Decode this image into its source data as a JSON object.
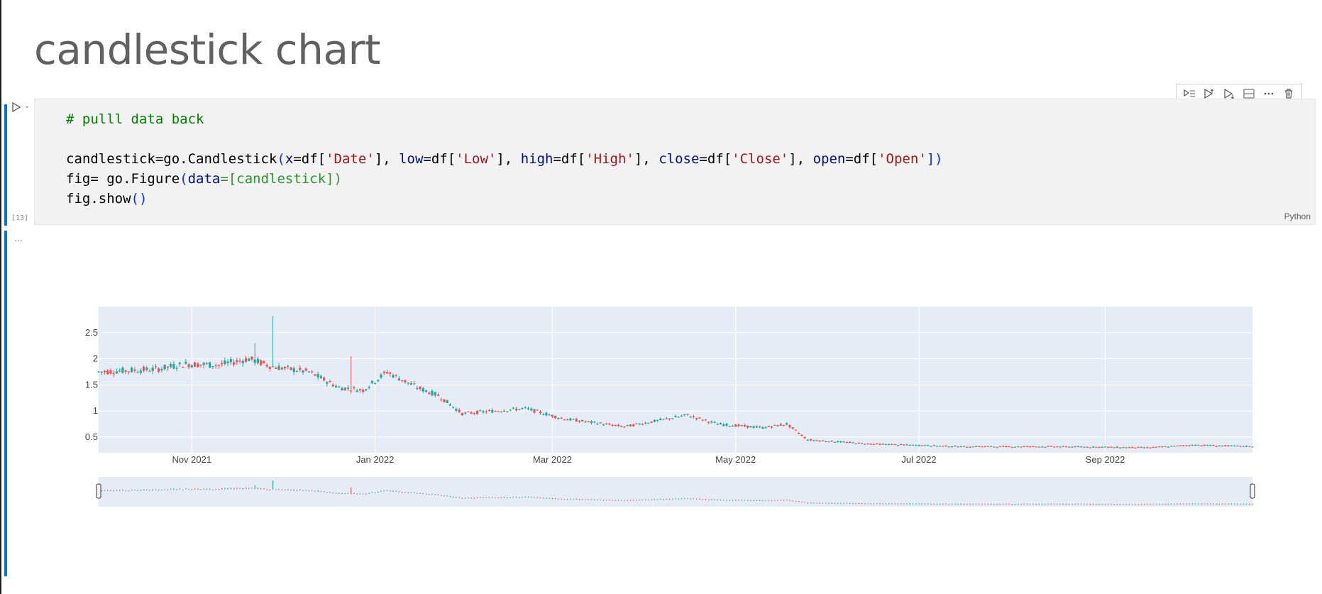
{
  "heading": "candlestick chart",
  "cell": {
    "execution_count": "[13]",
    "language": "Python",
    "output_indicator": "...",
    "code": {
      "comment": "# pulll data back",
      "line2_a": "candlestick=go.Candlestick",
      "line2_b": "x",
      "line2_c": "=df[",
      "line2_d": "'Date'",
      "line2_e": "], ",
      "line2_f": "low",
      "line2_g": "=df[",
      "line2_h": "'Low'",
      "line2_i": "], ",
      "line2_j": "high",
      "line2_k": "=df[",
      "line2_l": "'High'",
      "line2_m": "], ",
      "line2_n": "close",
      "line2_o": "=df[",
      "line2_p": "'Close'",
      "line2_q": "], ",
      "line2_r": "open",
      "line2_s": "=df[",
      "line2_t": "'Open'",
      "line2_u": "])",
      "line3_a": "fig= go.Figure",
      "line3_b": "data",
      "line3_c": "=[candlestick])",
      "line4_a": "fig.show",
      "line4_b": "()"
    },
    "toolbar_icons": [
      "run-by-line-icon",
      "execute-above-icon",
      "execute-below-icon",
      "split-cell-icon",
      "more-icon",
      "delete-icon"
    ]
  },
  "colors": {
    "increasing": "#26a69a",
    "decreasing": "#ef5350",
    "plot_bg": "#e5ecf6",
    "cell_accent": "#0078d4"
  },
  "chart_data": {
    "type": "candlestick",
    "title": "",
    "xlabel": "",
    "ylabel": "",
    "x_range": [
      "2021-10-01",
      "2022-10-20"
    ],
    "ylim": [
      0.2,
      3.0
    ],
    "y_ticks": [
      0.5,
      1,
      1.5,
      2,
      2.5
    ],
    "x_ticks": [
      {
        "date": "2021-11-01",
        "label": "Nov 2021"
      },
      {
        "date": "2022-01-01",
        "label": "Jan 2022"
      },
      {
        "date": "2022-03-01",
        "label": "Mar 2022"
      },
      {
        "date": "2022-05-01",
        "label": "May 2022"
      },
      {
        "date": "2022-07-01",
        "label": "Jul 2022"
      },
      {
        "date": "2022-09-01",
        "label": "Sep 2022"
      }
    ],
    "close_trend": [
      {
        "date": "2021-10-01",
        "value": 1.75
      },
      {
        "date": "2021-10-20",
        "value": 1.8
      },
      {
        "date": "2021-10-30",
        "value": 1.9
      },
      {
        "date": "2021-11-10",
        "value": 1.88
      },
      {
        "date": "2021-11-20",
        "value": 2.0
      },
      {
        "date": "2021-11-28",
        "value": 1.85
      },
      {
        "date": "2021-12-10",
        "value": 1.75
      },
      {
        "date": "2021-12-20",
        "value": 1.45
      },
      {
        "date": "2021-12-28",
        "value": 1.4
      },
      {
        "date": "2022-01-05",
        "value": 1.75
      },
      {
        "date": "2022-01-15",
        "value": 1.45
      },
      {
        "date": "2022-01-22",
        "value": 1.3
      },
      {
        "date": "2022-01-30",
        "value": 0.95
      },
      {
        "date": "2022-02-20",
        "value": 1.05
      },
      {
        "date": "2022-03-05",
        "value": 0.85
      },
      {
        "date": "2022-03-25",
        "value": 0.7
      },
      {
        "date": "2022-04-15",
        "value": 0.92
      },
      {
        "date": "2022-04-25",
        "value": 0.75
      },
      {
        "date": "2022-05-10",
        "value": 0.68
      },
      {
        "date": "2022-05-18",
        "value": 0.75
      },
      {
        "date": "2022-05-25",
        "value": 0.45
      },
      {
        "date": "2022-06-15",
        "value": 0.37
      },
      {
        "date": "2022-07-15",
        "value": 0.32
      },
      {
        "date": "2022-08-15",
        "value": 0.32
      },
      {
        "date": "2022-09-15",
        "value": 0.3
      },
      {
        "date": "2022-10-01",
        "value": 0.35
      },
      {
        "date": "2022-10-20",
        "value": 0.32
      }
    ],
    "spikes": [
      {
        "date": "2021-11-28",
        "high": 2.82
      },
      {
        "date": "2021-12-24",
        "high": 2.05
      },
      {
        "date": "2021-11-22",
        "high": 2.3
      }
    ],
    "rangeslider": true,
    "grid": true
  }
}
